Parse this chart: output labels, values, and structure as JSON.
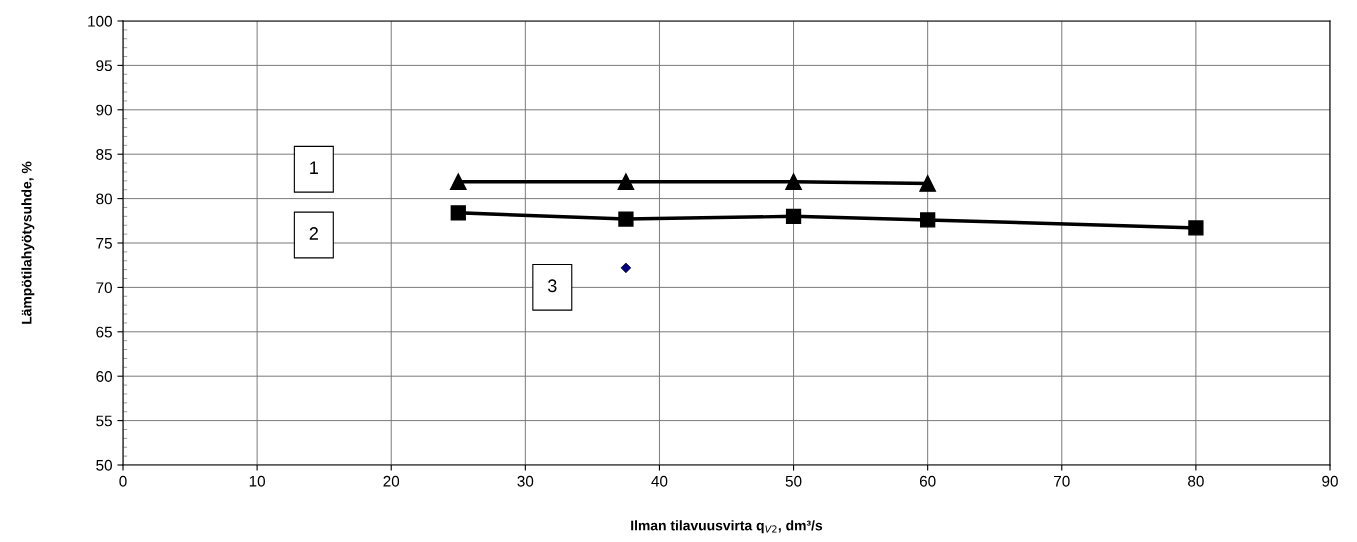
{
  "chart_data": {
    "type": "line",
    "xlabel": "Ilman tilavuusvirta q$_{V2}$, dm³/s",
    "ylabel": "Lämpötilahyötysuhde, %",
    "series": [
      {
        "name": "1",
        "color": "#000000",
        "marker": "triangle",
        "x": [
          25,
          37.5,
          50,
          60
        ],
        "values": [
          81.9,
          81.9,
          81.9,
          81.7
        ]
      },
      {
        "name": "2",
        "color": "#000000",
        "marker": "square",
        "x": [
          25,
          37.5,
          50,
          60,
          80
        ],
        "values": [
          78.4,
          77.7,
          78.0,
          77.6,
          76.7
        ]
      },
      {
        "name": "3",
        "type": "scatter",
        "color": "#000080",
        "marker": "diamond",
        "x": [
          37.5
        ],
        "values": [
          72.2
        ]
      }
    ],
    "xlim": [
      0,
      90
    ],
    "xticks": [
      0,
      10,
      20,
      30,
      40,
      50,
      60,
      70,
      80,
      90
    ],
    "ylim": [
      50,
      100
    ],
    "yticks": [
      50,
      55,
      60,
      65,
      70,
      75,
      80,
      85,
      90,
      95,
      100
    ],
    "grid": true,
    "line_style": "solid"
  }
}
